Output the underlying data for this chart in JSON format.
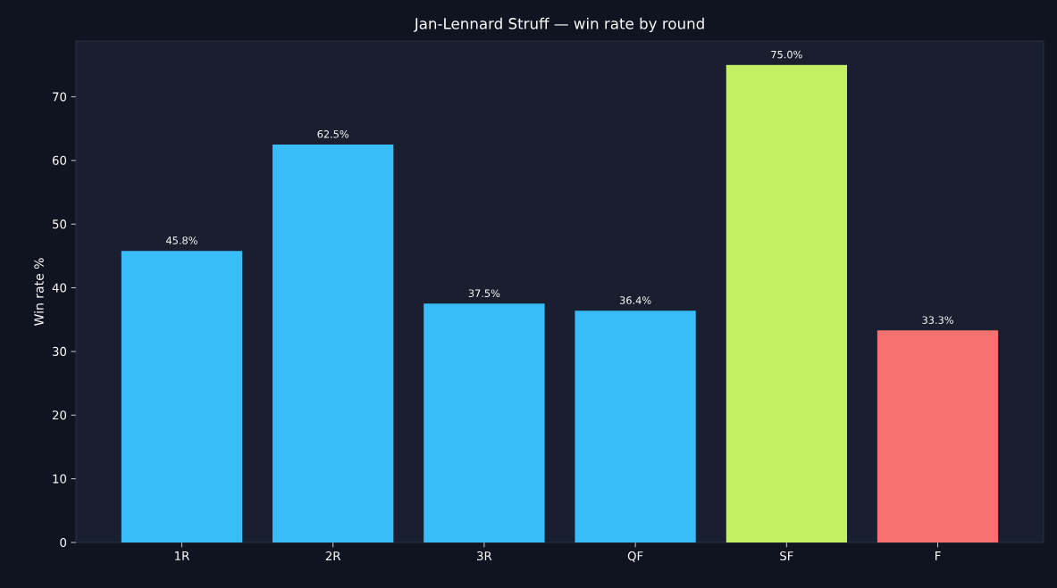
{
  "chart_data": {
    "type": "bar",
    "title": "Jan-Lennard Struff — win rate by round",
    "ylabel": "Win rate %",
    "categories": [
      "1R",
      "2R",
      "3R",
      "QF",
      "SF",
      "F"
    ],
    "values": [
      45.8,
      62.5,
      37.5,
      36.4,
      75.0,
      33.3
    ],
    "colors": [
      "#38bdf8",
      "#38bdf8",
      "#38bdf8",
      "#38bdf8",
      "#c3f062",
      "#f87171"
    ],
    "value_labels": [
      "45.8%",
      "62.5%",
      "37.5%",
      "36.4%",
      "75.0%",
      "33.3%"
    ],
    "ylim": [
      0,
      78.75
    ],
    "yticks": [
      0,
      10,
      20,
      30,
      40,
      50,
      60,
      70
    ],
    "grid": false
  }
}
